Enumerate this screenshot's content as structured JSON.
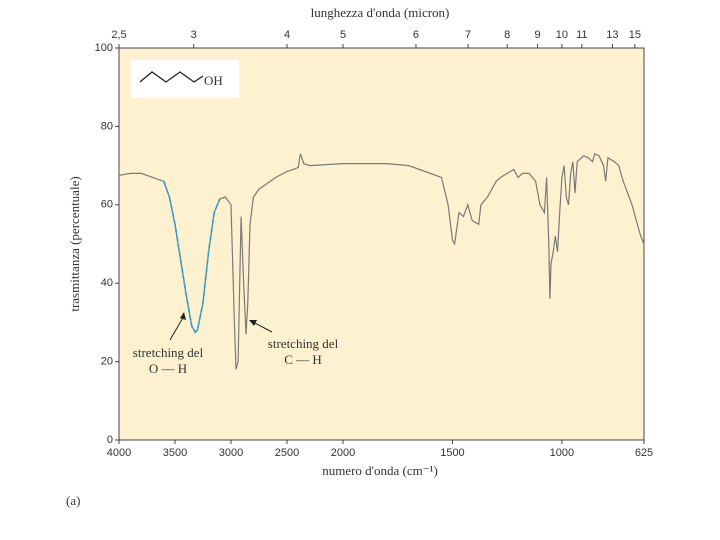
{
  "chart_data": {
    "type": "line",
    "title": "lunghezza d'onda (micron)",
    "x_label": "numero d'onda (cm⁻¹)",
    "y_label": "trasmittanza (percentuale)",
    "panel_label": "(a)",
    "inset_label": "OH",
    "inset_color": "#c0309a",
    "background": "#fdf1cf",
    "xlim": [
      4000,
      625
    ],
    "x_scale_break": 2000,
    "xticks": [
      4000,
      3500,
      3000,
      2500,
      2000,
      1500,
      1000,
      625
    ],
    "x2ticks": [
      {
        "value": 2.5,
        "label": "2,5"
      },
      3,
      4,
      5,
      6,
      7,
      8,
      9,
      10,
      11,
      13,
      15
    ],
    "ylim": [
      0,
      100
    ],
    "yticks": [
      0,
      20,
      40,
      60,
      80,
      100
    ],
    "annotations": [
      {
        "lines": [
          "stretching del",
          "O — H"
        ]
      },
      {
        "lines": [
          "stretching del",
          "C — H"
        ]
      }
    ],
    "series": [
      {
        "color": "#7a7a7a",
        "x": [
          4000,
          3900,
          3800,
          3700,
          3600,
          3550,
          3500,
          3450,
          3400,
          3350,
          3320,
          3300,
          3250,
          3200,
          3150,
          3100,
          3050,
          3000,
          2970,
          2955,
          2937,
          2910,
          2884,
          2866,
          2850,
          2830,
          2800,
          2750,
          2700,
          2600,
          2500,
          2400,
          2380,
          2350,
          2300,
          2000,
          1800,
          1700,
          1650,
          1550,
          1520,
          1500,
          1490,
          1470,
          1450,
          1430,
          1410,
          1380,
          1370,
          1340,
          1300,
          1280,
          1250,
          1220,
          1200,
          1180,
          1150,
          1120,
          1100,
          1080,
          1070,
          1060,
          1055,
          1050,
          1040,
          1030,
          1020,
          1010,
          1000,
          990,
          980,
          970,
          960,
          950,
          940,
          930,
          900,
          880,
          860,
          850,
          830,
          810,
          800,
          790,
          760,
          740,
          720,
          700,
          680,
          660,
          640,
          625
        ],
        "values": [
          67.5,
          68,
          68,
          67,
          66,
          62,
          55,
          46,
          37,
          29,
          27.5,
          28,
          35,
          48,
          58,
          61.5,
          62,
          60,
          30,
          18,
          20,
          57,
          38,
          27,
          35,
          55,
          62,
          64,
          65,
          67,
          68.5,
          69.5,
          73,
          70.5,
          70,
          70.5,
          70.5,
          70,
          69,
          67,
          60,
          51,
          50,
          58,
          57,
          60,
          56,
          55,
          60,
          62,
          66,
          67,
          68,
          69,
          67,
          68,
          68,
          66,
          60,
          58,
          67,
          50,
          36,
          45,
          48,
          52,
          48,
          58,
          67,
          70,
          62,
          60,
          68,
          71,
          63,
          71,
          72.5,
          72,
          71,
          73,
          72.5,
          70,
          66,
          72,
          71,
          70,
          66,
          63,
          60,
          56,
          52,
          50
        ]
      },
      {
        "color": "#2b9fd8",
        "x": [
          3600,
          3550,
          3500,
          3450,
          3400,
          3350,
          3320,
          3300,
          3250,
          3200,
          3150,
          3100
        ],
        "values": [
          66,
          62,
          55,
          46,
          37,
          29,
          27.5,
          28,
          35,
          48,
          58,
          61.5
        ]
      }
    ]
  }
}
